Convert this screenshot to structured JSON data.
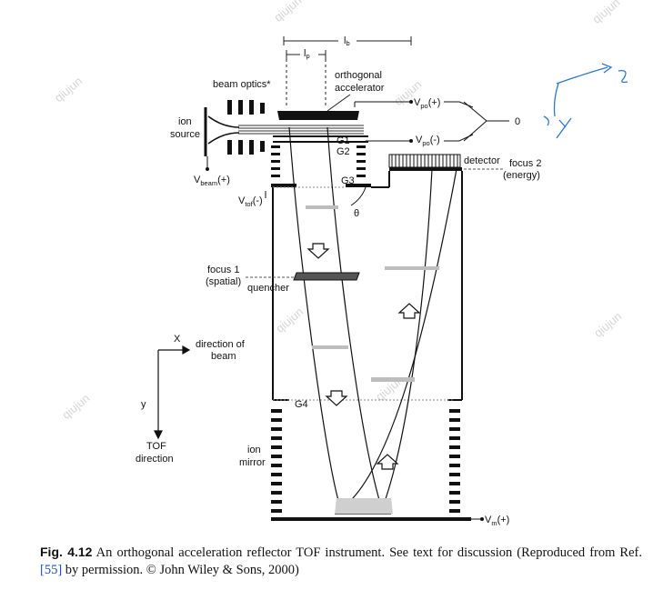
{
  "labels": {
    "lb": "l",
    "lb_sub": "b",
    "lp": "l",
    "lp_sub": "p",
    "beam_optics": "beam optics*",
    "orthogonal": "orthogonal",
    "accelerator": "accelerator",
    "ion": "ion",
    "source": "source",
    "vpo_plus": "V",
    "vpo_plus_sub": "po",
    "vpo_plus_suffix": "(+)",
    "vpo_minus": "V",
    "vpo_minus_sub": "po",
    "vpo_minus_suffix": "(-)",
    "zero": "0",
    "g1": "G1",
    "g2": "G2",
    "g3": "G3",
    "g4": "G4",
    "detector": "detector",
    "focus2_line1": "focus 2",
    "focus2_line2": "(energy)",
    "vbeam": "V",
    "vbeam_sub": "beam",
    "vbeam_suffix": "(+)",
    "vtof": "V",
    "vtof_sub": "tof",
    "vtof_suffix": "(-)",
    "theta": "θ",
    "focus1_line1": "focus 1",
    "focus1_line2": "(spatial)",
    "quencher": "quencher",
    "axis_x": "X",
    "direction_line1": "direction of",
    "direction_line2": "beam",
    "axis_y": "y",
    "tof_line1": "TOF",
    "tof_line2": "direction",
    "ion_mirror_line1": "ion",
    "ion_mirror_line2": "mirror",
    "vm": "V",
    "vm_sub": "m",
    "vm_suffix": "(+)"
  },
  "watermark": "qiujun",
  "caption": {
    "fig_label": "Fig. 4.12",
    "text_main": " An orthogonal acceleration reflector TOF instrument. See text for discussion (Reproduced from Ref. ",
    "ref": "[55]",
    "text_end": " by permission. © John Wiley & Sons, 2000)"
  }
}
